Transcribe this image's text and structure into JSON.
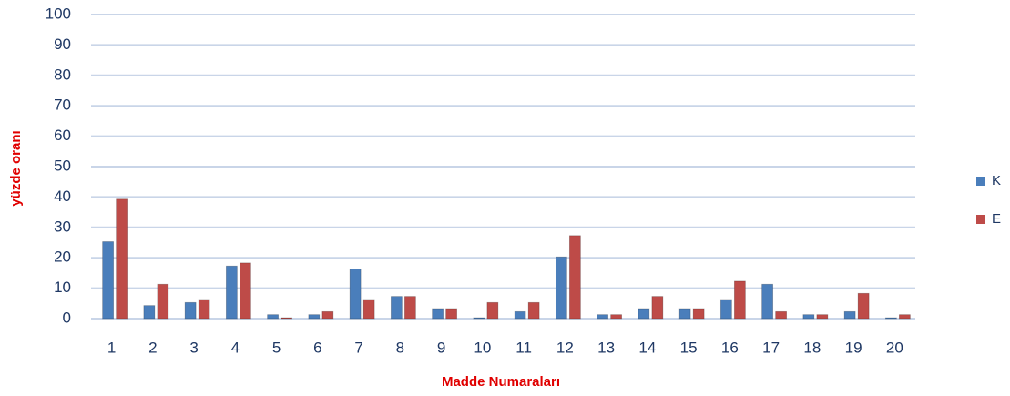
{
  "chart_data": {
    "type": "bar",
    "x_label": "Madde Numaraları",
    "y_label": "yüzde oranı",
    "categories": [
      "1",
      "2",
      "3",
      "4",
      "5",
      "6",
      "7",
      "8",
      "9",
      "10",
      "11",
      "12",
      "13",
      "14",
      "15",
      "16",
      "17",
      "18",
      "19",
      "20"
    ],
    "series": [
      {
        "name": "K",
        "color": "#4a7ebb",
        "values": [
          25,
          4,
          5,
          17,
          1,
          1,
          16,
          7,
          3,
          0,
          2,
          20,
          1,
          3,
          3,
          6,
          11,
          1,
          2,
          0
        ]
      },
      {
        "name": "E",
        "color": "#be4b48",
        "values": [
          39,
          11,
          6,
          18,
          0,
          2,
          6,
          7,
          3,
          5,
          5,
          27,
          1,
          7,
          3,
          12,
          2,
          1,
          8,
          1
        ]
      }
    ],
    "ylim": [
      0,
      100
    ],
    "yticks": [
      0,
      10,
      20,
      30,
      40,
      50,
      60,
      70,
      80,
      90,
      100
    ],
    "grid": true,
    "legend": "right"
  }
}
